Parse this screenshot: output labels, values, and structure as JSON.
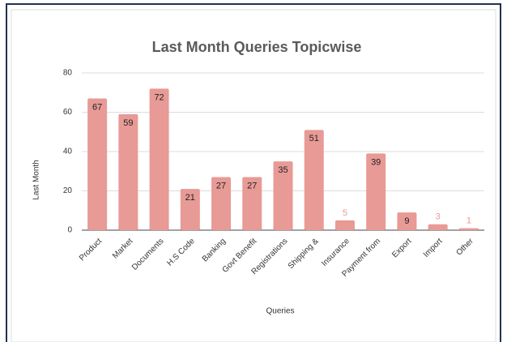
{
  "chart_data": {
    "type": "bar",
    "title": "Last Month Queries Topicwise",
    "x_label": "Queries",
    "y_label": "Last Month",
    "categories": [
      "Product",
      "Market",
      "Documents",
      "H.S Code",
      "Banking",
      "Govt Benefit",
      "Registrations",
      "Shipping &",
      "Insurance",
      "Payment from",
      "Export",
      "Import",
      "Other"
    ],
    "values": [
      67,
      59,
      72,
      21,
      27,
      27,
      35,
      51,
      5,
      39,
      9,
      3,
      1
    ],
    "color": "#e89a96",
    "ylim": [
      0,
      80
    ],
    "yticks": [
      0,
      20,
      40,
      60,
      80
    ],
    "grid": true
  }
}
